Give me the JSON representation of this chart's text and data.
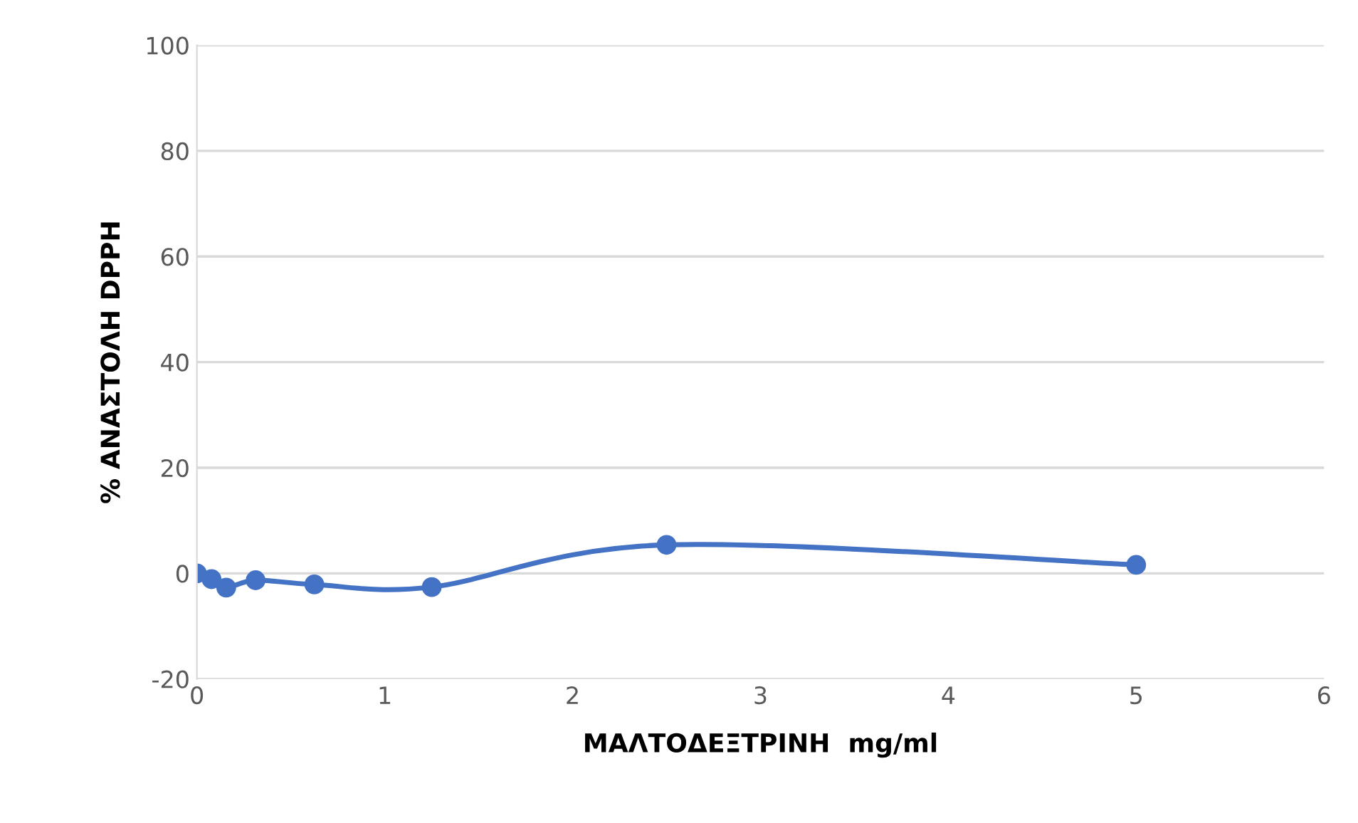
{
  "chart_data": {
    "type": "line",
    "xlabel": "ΜΑΛΤΟΔΕΞΤΡΙΝΗ  mg/ml",
    "ylabel": "% ΑΝΑΣΤΟΛΗ DPPH",
    "x": [
      0,
      0.078,
      0.156,
      0.3125,
      0.625,
      1.25,
      2.5,
      5
    ],
    "series": [
      {
        "color": "#4472c4",
        "values": [
          0,
          -1.1,
          -2.7,
          -1.3,
          -2.1,
          -2.6,
          5.4,
          1.6
        ]
      }
    ],
    "xlim": [
      0,
      6
    ],
    "xticks": [
      0,
      1,
      2,
      3,
      4,
      5,
      6
    ],
    "ylim": [
      -20,
      100
    ],
    "yticks": [
      -20,
      0,
      20,
      40,
      60,
      80,
      100
    ],
    "grid": "y",
    "marker": "circle",
    "line_style": "solid",
    "legend": false
  }
}
